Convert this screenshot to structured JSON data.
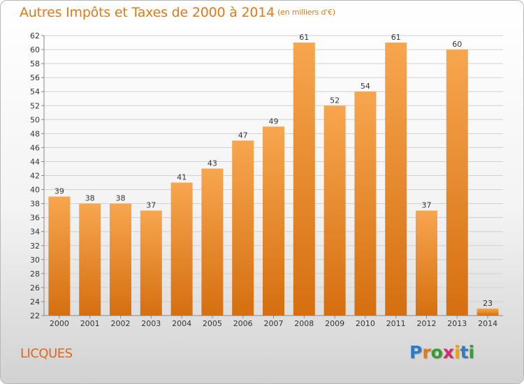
{
  "title": "Autres Impôts et Taxes de 2000 à 2014",
  "unit": "(en milliers d'€)",
  "commune": "LICQUES",
  "logo": {
    "letters": [
      "P",
      "r",
      "o",
      "x",
      "i",
      "t",
      "i"
    ],
    "colors": [
      "#2e7cc4",
      "#e07a16",
      "#3a9b35",
      "#d02b6b",
      "#f0a30a",
      "#2e7cc4",
      "#3a9b35"
    ]
  },
  "colors": {
    "bar_light": "#f7a64f",
    "bar_dark": "#d56f10",
    "grid": "#d0d0d0"
  },
  "chart_data": {
    "type": "bar",
    "categories": [
      "2000",
      "2001",
      "2002",
      "2003",
      "2004",
      "2005",
      "2006",
      "2007",
      "2008",
      "2009",
      "2010",
      "2011",
      "2012",
      "2013",
      "2014"
    ],
    "values": [
      39,
      38,
      38,
      37,
      41,
      43,
      47,
      49,
      61,
      52,
      54,
      61,
      37,
      60,
      23
    ],
    "ylim": [
      22,
      62
    ],
    "yticks": [
      22,
      24,
      26,
      28,
      30,
      32,
      34,
      36,
      38,
      40,
      42,
      44,
      46,
      48,
      50,
      52,
      54,
      56,
      58,
      60,
      62
    ],
    "grid": true,
    "data_labels": true,
    "xlabel": "",
    "ylabel": ""
  }
}
